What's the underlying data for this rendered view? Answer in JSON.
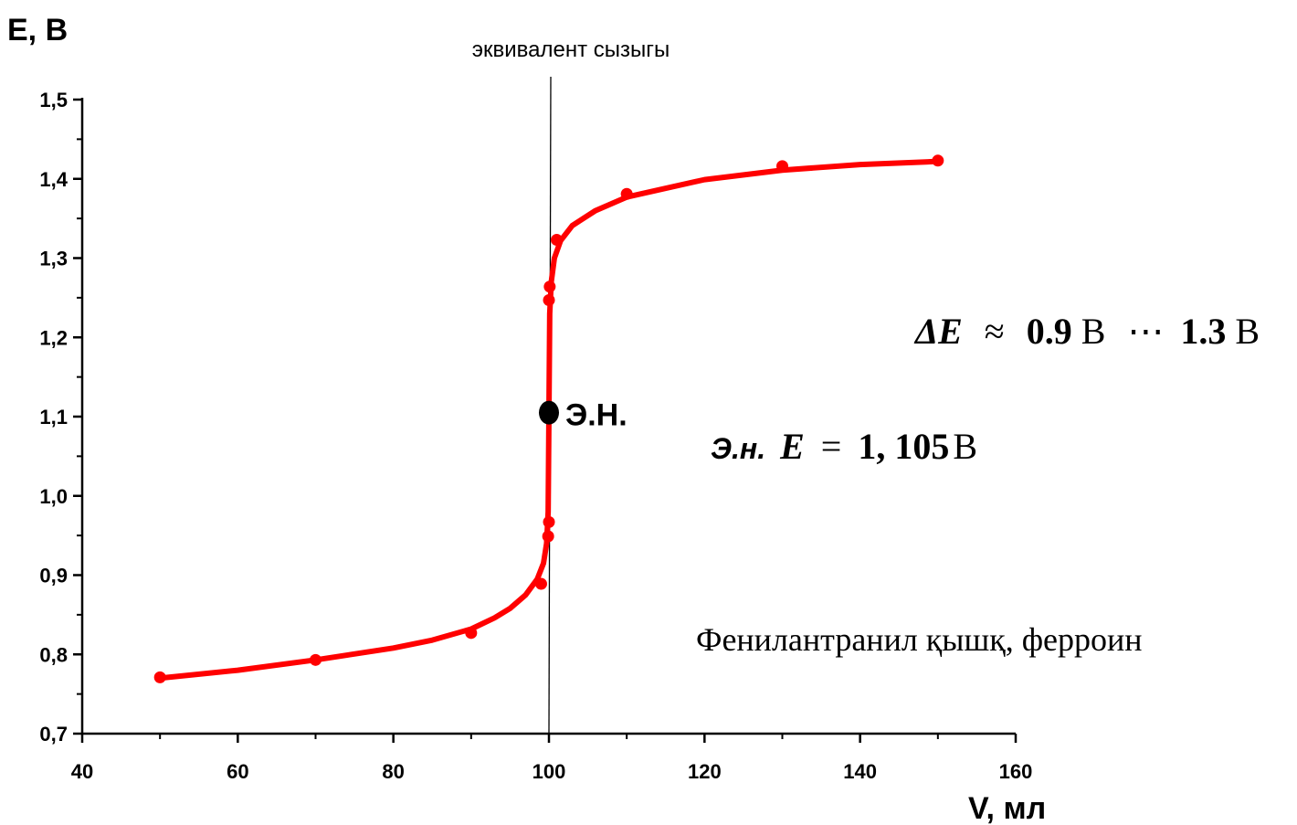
{
  "chart_data": {
    "type": "scatter",
    "xlabel": "V, мл",
    "ylabel": "E, B",
    "xlim": [
      40,
      160
    ],
    "ylim": [
      0.7,
      1.5
    ],
    "x_ticks": [
      "40",
      "60",
      "80",
      "100",
      "120",
      "140",
      "160"
    ],
    "y_ticks": [
      "0,7",
      "0,8",
      "0,9",
      "1,0",
      "1,1",
      "1,2",
      "1,3",
      "1,4",
      "1,5"
    ],
    "grid": false,
    "series": [
      {
        "color": "#ff0000",
        "points": [
          {
            "x": 50,
            "y": 0.771
          },
          {
            "x": 70,
            "y": 0.793
          },
          {
            "x": 90,
            "y": 0.827
          },
          {
            "x": 99,
            "y": 0.889
          },
          {
            "x": 99.9,
            "y": 0.949
          },
          {
            "x": 100,
            "y": 0.967
          },
          {
            "x": 100,
            "y": 1.247
          },
          {
            "x": 100.1,
            "y": 1.264
          },
          {
            "x": 101,
            "y": 1.323
          },
          {
            "x": 110,
            "y": 1.381
          },
          {
            "x": 130,
            "y": 1.416
          },
          {
            "x": 150,
            "y": 1.423
          }
        ]
      }
    ],
    "fitted_curve": [
      [
        50,
        0.77
      ],
      [
        60,
        0.78
      ],
      [
        70,
        0.793
      ],
      [
        80,
        0.808
      ],
      [
        85,
        0.818
      ],
      [
        90,
        0.832
      ],
      [
        93,
        0.846
      ],
      [
        95,
        0.858
      ],
      [
        97,
        0.875
      ],
      [
        98.5,
        0.895
      ],
      [
        99.3,
        0.915
      ],
      [
        99.7,
        0.94
      ],
      [
        99.9,
        0.98
      ],
      [
        100,
        1.105
      ],
      [
        100.1,
        1.23
      ],
      [
        100.3,
        1.27
      ],
      [
        100.7,
        1.3
      ],
      [
        101.5,
        1.322
      ],
      [
        103,
        1.341
      ],
      [
        106,
        1.36
      ],
      [
        110,
        1.377
      ],
      [
        120,
        1.399
      ],
      [
        130,
        1.411
      ],
      [
        140,
        1.418
      ],
      [
        150,
        1.422
      ]
    ],
    "equivalence_line": {
      "x": 100,
      "label": "эквивалент сызыгы"
    },
    "equivalence_point": {
      "x": 100,
      "y": 1.105,
      "label": "Э.Н.",
      "color": "#000000"
    },
    "annotations": {
      "delta_e": {
        "symbol": "ΔE",
        "approx": "≈",
        "low": "0.9",
        "unit": "В",
        "dots": "⋯",
        "high": "1.3"
      },
      "ep_value": {
        "prefix": "Э.н.",
        "symbol": "E",
        "equals": "=",
        "value": "1, 105",
        "unit": "В"
      },
      "indicator": "Фенилантранил қышқ, ферроин"
    }
  }
}
